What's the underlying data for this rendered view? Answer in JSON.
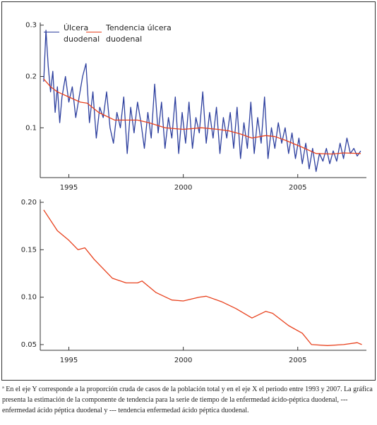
{
  "chart_data": [
    {
      "type": "line",
      "xlim": [
        1993.75,
        2008.0
      ],
      "ylim": [
        0.003,
        0.305
      ],
      "xticks": [
        1995,
        2000,
        2005
      ],
      "yticks": [
        0.1,
        0.2,
        0.3
      ],
      "legend": "upper left",
      "series": [
        {
          "name": "Úlcera duodenal",
          "color": "#2d3f9e",
          "x": [
            1993.9,
            1994.0,
            1994.1,
            1994.2,
            1994.3,
            1994.4,
            1994.5,
            1994.6,
            1994.7,
            1994.85,
            1995.0,
            1995.15,
            1995.3,
            1995.45,
            1995.6,
            1995.75,
            1995.9,
            1996.05,
            1996.2,
            1996.35,
            1996.5,
            1996.65,
            1996.8,
            1996.95,
            1997.1,
            1997.25,
            1997.4,
            1997.55,
            1997.7,
            1997.85,
            1998.0,
            1998.15,
            1998.3,
            1998.45,
            1998.6,
            1998.75,
            1998.9,
            1999.05,
            1999.2,
            1999.35,
            1999.5,
            1999.65,
            1999.8,
            1999.95,
            2000.1,
            2000.25,
            2000.4,
            2000.55,
            2000.7,
            2000.85,
            2001.0,
            2001.15,
            2001.3,
            2001.45,
            2001.6,
            2001.75,
            2001.9,
            2002.05,
            2002.2,
            2002.35,
            2002.5,
            2002.65,
            2002.8,
            2002.95,
            2003.1,
            2003.25,
            2003.4,
            2003.55,
            2003.7,
            2003.85,
            2004.0,
            2004.15,
            2004.3,
            2004.45,
            2004.6,
            2004.75,
            2004.9,
            2005.05,
            2005.2,
            2005.35,
            2005.5,
            2005.65,
            2005.8,
            2005.95,
            2006.1,
            2006.25,
            2006.4,
            2006.55,
            2006.7,
            2006.85,
            2007.0,
            2007.15,
            2007.3,
            2007.45,
            2007.6,
            2007.75
          ],
          "values": [
            0.19,
            0.29,
            0.22,
            0.17,
            0.21,
            0.13,
            0.18,
            0.11,
            0.16,
            0.2,
            0.15,
            0.18,
            0.12,
            0.16,
            0.2,
            0.225,
            0.11,
            0.17,
            0.08,
            0.14,
            0.12,
            0.17,
            0.1,
            0.07,
            0.13,
            0.1,
            0.16,
            0.05,
            0.14,
            0.09,
            0.15,
            0.11,
            0.06,
            0.13,
            0.08,
            0.185,
            0.09,
            0.15,
            0.06,
            0.12,
            0.08,
            0.16,
            0.05,
            0.13,
            0.07,
            0.15,
            0.06,
            0.12,
            0.09,
            0.17,
            0.07,
            0.13,
            0.08,
            0.14,
            0.05,
            0.12,
            0.08,
            0.13,
            0.06,
            0.14,
            0.04,
            0.11,
            0.06,
            0.15,
            0.05,
            0.12,
            0.07,
            0.16,
            0.04,
            0.1,
            0.06,
            0.11,
            0.07,
            0.1,
            0.05,
            0.09,
            0.04,
            0.08,
            0.03,
            0.07,
            0.02,
            0.06,
            0.015,
            0.05,
            0.035,
            0.06,
            0.03,
            0.055,
            0.035,
            0.07,
            0.04,
            0.08,
            0.05,
            0.06,
            0.045,
            0.055
          ]
        },
        {
          "name": "Tendencia úlcera duodenal",
          "color": "#e8401c",
          "x": [
            1993.9,
            1994.2,
            1994.5,
            1995.0,
            1995.5,
            1995.8,
            1996.3,
            1997.0,
            1997.5,
            1998.0,
            1998.5,
            1999.2,
            2000.0,
            2000.8,
            2001.5,
            2002.0,
            2002.5,
            2003.0,
            2003.6,
            2004.0,
            2004.5,
            2005.2,
            2005.8,
            2006.5,
            2007.0,
            2007.75
          ],
          "values": [
            0.195,
            0.18,
            0.17,
            0.16,
            0.15,
            0.148,
            0.13,
            0.115,
            0.115,
            0.115,
            0.11,
            0.1,
            0.097,
            0.1,
            0.097,
            0.094,
            0.088,
            0.08,
            0.085,
            0.083,
            0.075,
            0.062,
            0.05,
            0.049,
            0.051,
            0.05
          ]
        }
      ]
    },
    {
      "type": "line",
      "xlim": [
        1993.75,
        2008.0
      ],
      "ylim": [
        0.044,
        0.203
      ],
      "xticks": [
        1995,
        2000,
        2005
      ],
      "yticks": [
        {
          "value": 0.05,
          "label": "0.05"
        },
        {
          "value": 0.1,
          "label": "0.10"
        },
        {
          "value": 0.15,
          "label": "0.15"
        },
        {
          "value": 0.2,
          "label": "0.20"
        }
      ],
      "series": [
        {
          "color": "#e8401c",
          "x": [
            1993.9,
            1994.5,
            1995.0,
            1995.4,
            1995.7,
            1996.1,
            1996.9,
            1997.5,
            1998.0,
            1998.2,
            1998.8,
            1999.5,
            2000.0,
            2000.7,
            2001.0,
            2001.7,
            2002.3,
            2003.0,
            2003.6,
            2003.9,
            2004.6,
            2005.2,
            2005.6,
            2006.3,
            2007.0,
            2007.6,
            2007.8
          ],
          "values": [
            0.192,
            0.17,
            0.16,
            0.15,
            0.152,
            0.14,
            0.12,
            0.115,
            0.115,
            0.117,
            0.105,
            0.097,
            0.096,
            0.1,
            0.101,
            0.095,
            0.088,
            0.078,
            0.085,
            0.083,
            0.07,
            0.062,
            0.05,
            0.049,
            0.05,
            0.052,
            0.05
          ]
        }
      ]
    }
  ],
  "footnote": "ª En el eje Y corresponde a la proporción cruda de casos de la población total y en el eje X el periodo entre 1993 y 2007. La gráfica presenta la estimación de la componente de tendencia para la serie de tiempo de la enfermedad ácido-péptica duodenal, --- enfermedad ácido péptica duodenal y --- tendencia enfermedad ácido péptica duodenal."
}
